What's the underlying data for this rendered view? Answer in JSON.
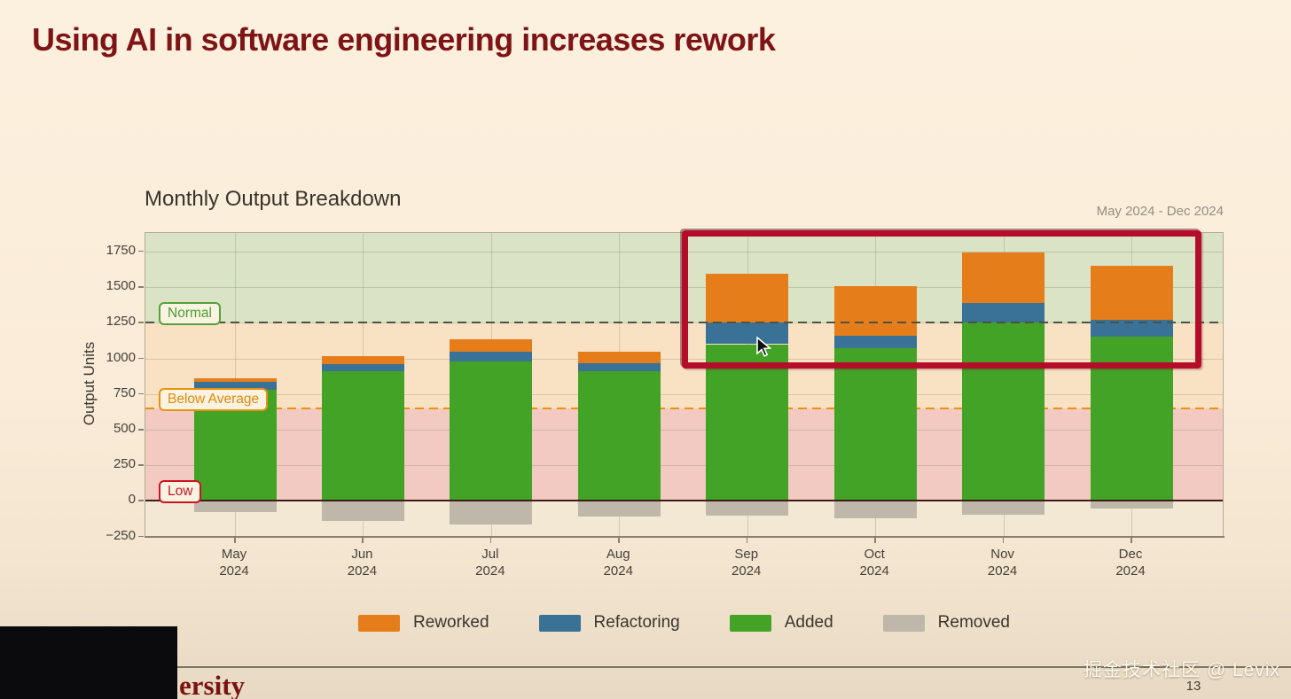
{
  "slide": {
    "title": "Using AI in software engineering increases rework",
    "title_color": "#7e1416",
    "background_color": "#faecd8",
    "watermark": "掘金技术社区 @ Levix",
    "page_number": "13",
    "footer_partial_text": "ersity"
  },
  "chart": {
    "title": "Monthly Output Breakdown",
    "subtitle": "May 2024 - Dec 2024",
    "ylabel": "Output Units"
  },
  "chart_data": {
    "type": "bar",
    "stacked": true,
    "title": "Monthly Output Breakdown",
    "subtitle": "May 2024 - Dec 2024",
    "xlabel": "",
    "ylabel": "Output Units",
    "categories": [
      "May 2024",
      "Jun 2024",
      "Jul 2024",
      "Aug 2024",
      "Sep 2024",
      "Oct 2024",
      "Nov 2024",
      "Dec 2024"
    ],
    "series": [
      {
        "name": "Reworked",
        "color": "#e57d1a",
        "values": [
          25,
          55,
          85,
          80,
          345,
          350,
          355,
          380
        ]
      },
      {
        "name": "Refactoring",
        "color": "#3a7196",
        "values": [
          55,
          50,
          70,
          55,
          150,
          85,
          140,
          120
        ]
      },
      {
        "name": "Added",
        "color": "#43a327",
        "values": [
          780,
          910,
          980,
          910,
          1100,
          1075,
          1250,
          1150
        ]
      },
      {
        "name": "Removed",
        "color": "#bfb7a9",
        "values": [
          -80,
          -140,
          -165,
          -110,
          -105,
          -120,
          -95,
          -50
        ]
      }
    ],
    "stack_order_bottom_to_top": [
      "Added",
      "Refactoring",
      "Reworked"
    ],
    "negative_series": "Removed",
    "ylim": [
      -258,
      1880
    ],
    "yticks": [
      -250,
      0,
      250,
      500,
      750,
      1000,
      1250,
      1500,
      1750
    ],
    "grid": true,
    "legend_position": "bottom",
    "legend": [
      "Reworked",
      "Refactoring",
      "Added",
      "Removed"
    ],
    "thresholds": [
      {
        "label": "Normal",
        "value": 1250,
        "style": "dashed",
        "line_color": "#4d5343",
        "box_color": "#55a23b",
        "text_color": "#4a9e33",
        "above_bars": true
      },
      {
        "label": "Below Average",
        "value": 650,
        "style": "dashed",
        "line_color": "#e8920f",
        "box_color": "#e8920f",
        "text_color": "#e08a0c",
        "above_bars": false
      },
      {
        "label": "Low",
        "value": 0,
        "style": "solid",
        "line_color": "#3d1c14",
        "box_color": "#cf1124",
        "text_color": "#cc1122",
        "above_bars": true
      }
    ],
    "bands": [
      {
        "from": 1250,
        "to": 1880,
        "color": "#dbe3c5",
        "meaning": "Normal"
      },
      {
        "from": 650,
        "to": 1250,
        "color": "#f9e2c4",
        "meaning": "Below Average"
      },
      {
        "from": 0,
        "to": 650,
        "color": "#f2cac2",
        "meaning": "Low"
      },
      {
        "from": -258,
        "to": 0,
        "color": "#f3e8d3",
        "meaning": "below zero"
      }
    ],
    "annotations": {
      "highlight_box": {
        "months": [
          "Sep 2024",
          "Oct 2024",
          "Nov 2024",
          "Dec 2024"
        ],
        "color": "#b30d2a"
      }
    }
  }
}
